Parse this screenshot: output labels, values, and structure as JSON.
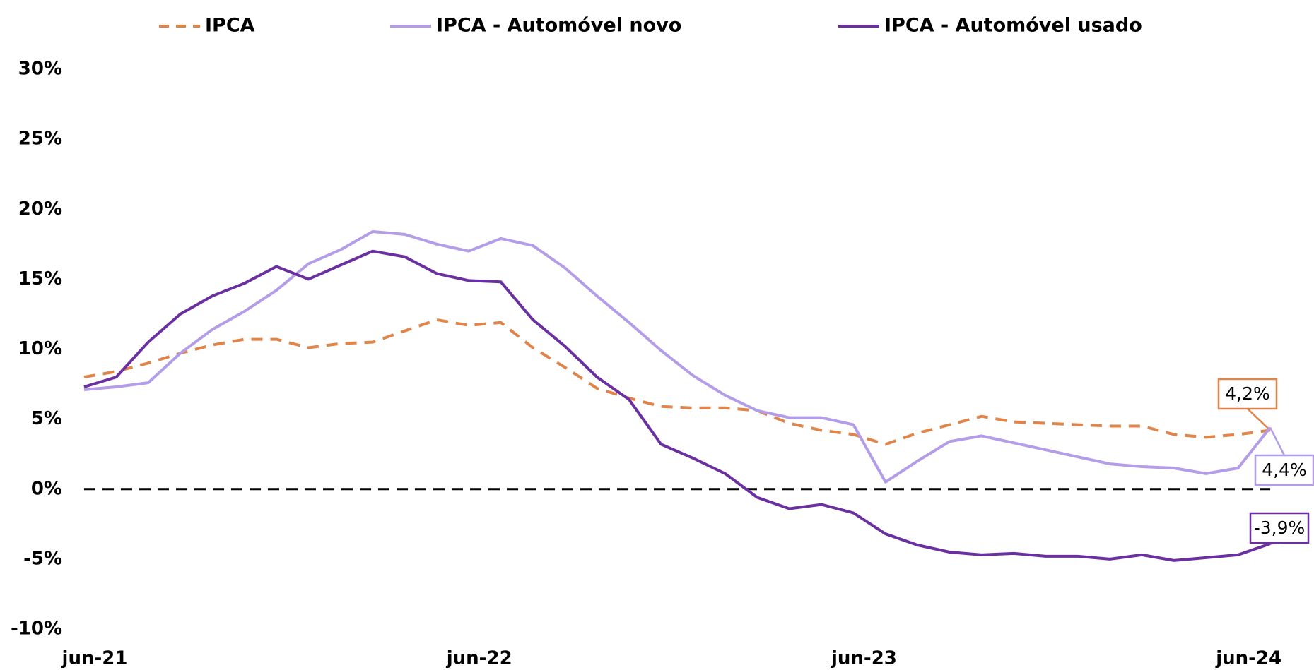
{
  "chart_data": {
    "type": "line",
    "categories": [
      "jun-21",
      null,
      null,
      null,
      null,
      null,
      null,
      null,
      null,
      null,
      null,
      null,
      "jun-22",
      null,
      null,
      null,
      null,
      null,
      null,
      null,
      null,
      null,
      null,
      null,
      "jun-23",
      null,
      null,
      null,
      null,
      null,
      null,
      null,
      null,
      null,
      null,
      null,
      "jun-24",
      null
    ],
    "series": [
      {
        "name": "IPCA",
        "color": "#e0844a",
        "dashed": true,
        "values": [
          8.0,
          8.4,
          9.0,
          9.7,
          10.3,
          10.7,
          10.7,
          10.1,
          10.4,
          10.5,
          11.3,
          12.1,
          11.7,
          11.9,
          10.1,
          8.7,
          7.2,
          6.5,
          5.9,
          5.8,
          5.8,
          5.6,
          4.7,
          4.2,
          3.9,
          3.2,
          4.0,
          4.6,
          5.2,
          4.8,
          4.7,
          4.6,
          4.5,
          4.5,
          3.9,
          3.7,
          3.9,
          4.2
        ],
        "value_labels": [
          null,
          null,
          null,
          null,
          null,
          null,
          null,
          null,
          null,
          null,
          null,
          null,
          null,
          null,
          null,
          null,
          null,
          null,
          null,
          null,
          null,
          null,
          null,
          null,
          null,
          null,
          null,
          null,
          null,
          null,
          null,
          null,
          null,
          null,
          null,
          null,
          null,
          "4,2%"
        ]
      },
      {
        "name": "IPCA - Automóvel novo",
        "color": "#b39ce8",
        "dashed": false,
        "values": [
          7.1,
          7.3,
          7.6,
          9.7,
          11.4,
          12.7,
          14.2,
          16.1,
          17.1,
          18.4,
          18.2,
          17.5,
          17.0,
          17.9,
          17.4,
          15.8,
          13.8,
          11.9,
          9.9,
          8.1,
          6.7,
          5.6,
          5.1,
          5.1,
          4.6,
          0.5,
          2.0,
          3.4,
          3.8,
          3.3,
          2.8,
          2.3,
          1.8,
          1.6,
          1.5,
          1.1,
          1.5,
          4.4
        ],
        "value_labels": [
          null,
          null,
          null,
          null,
          null,
          null,
          null,
          null,
          null,
          null,
          null,
          null,
          null,
          null,
          null,
          null,
          null,
          null,
          null,
          null,
          null,
          null,
          null,
          null,
          null,
          null,
          null,
          null,
          null,
          null,
          null,
          null,
          null,
          null,
          null,
          null,
          null,
          "4,4%"
        ]
      },
      {
        "name": "IPCA - Automóvel usado",
        "color": "#6a2fa0",
        "dashed": false,
        "values": [
          7.3,
          8.0,
          10.5,
          12.5,
          13.8,
          14.7,
          15.9,
          15.0,
          16.0,
          17.0,
          16.6,
          15.4,
          14.9,
          14.8,
          12.1,
          10.2,
          8.0,
          6.4,
          3.2,
          2.2,
          1.1,
          -0.6,
          -1.4,
          -1.1,
          -1.7,
          -3.2,
          -4.0,
          -4.5,
          -4.7,
          -4.6,
          -4.8,
          -4.8,
          -5.0,
          -4.7,
          -5.1,
          -4.9,
          -4.7,
          -3.9
        ],
        "value_labels": [
          null,
          null,
          null,
          null,
          null,
          null,
          null,
          null,
          null,
          null,
          null,
          null,
          null,
          null,
          null,
          null,
          null,
          null,
          null,
          null,
          null,
          null,
          null,
          null,
          null,
          null,
          null,
          null,
          null,
          null,
          null,
          null,
          null,
          null,
          null,
          null,
          null,
          "-3,9%"
        ]
      }
    ],
    "ylim": [
      -10,
      30
    ],
    "yticks": [
      {
        "value": -10,
        "label": "-10%"
      },
      {
        "value": -5,
        "label": "-5%"
      },
      {
        "value": 0,
        "label": "0%"
      },
      {
        "value": 5,
        "label": "5%"
      },
      {
        "value": 10,
        "label": "10%"
      },
      {
        "value": 15,
        "label": "15%"
      },
      {
        "value": 20,
        "label": "20%"
      },
      {
        "value": 25,
        "label": "25%"
      },
      {
        "value": 30,
        "label": "30%"
      }
    ],
    "zero_line": 0,
    "grid": false,
    "legend": "top"
  }
}
